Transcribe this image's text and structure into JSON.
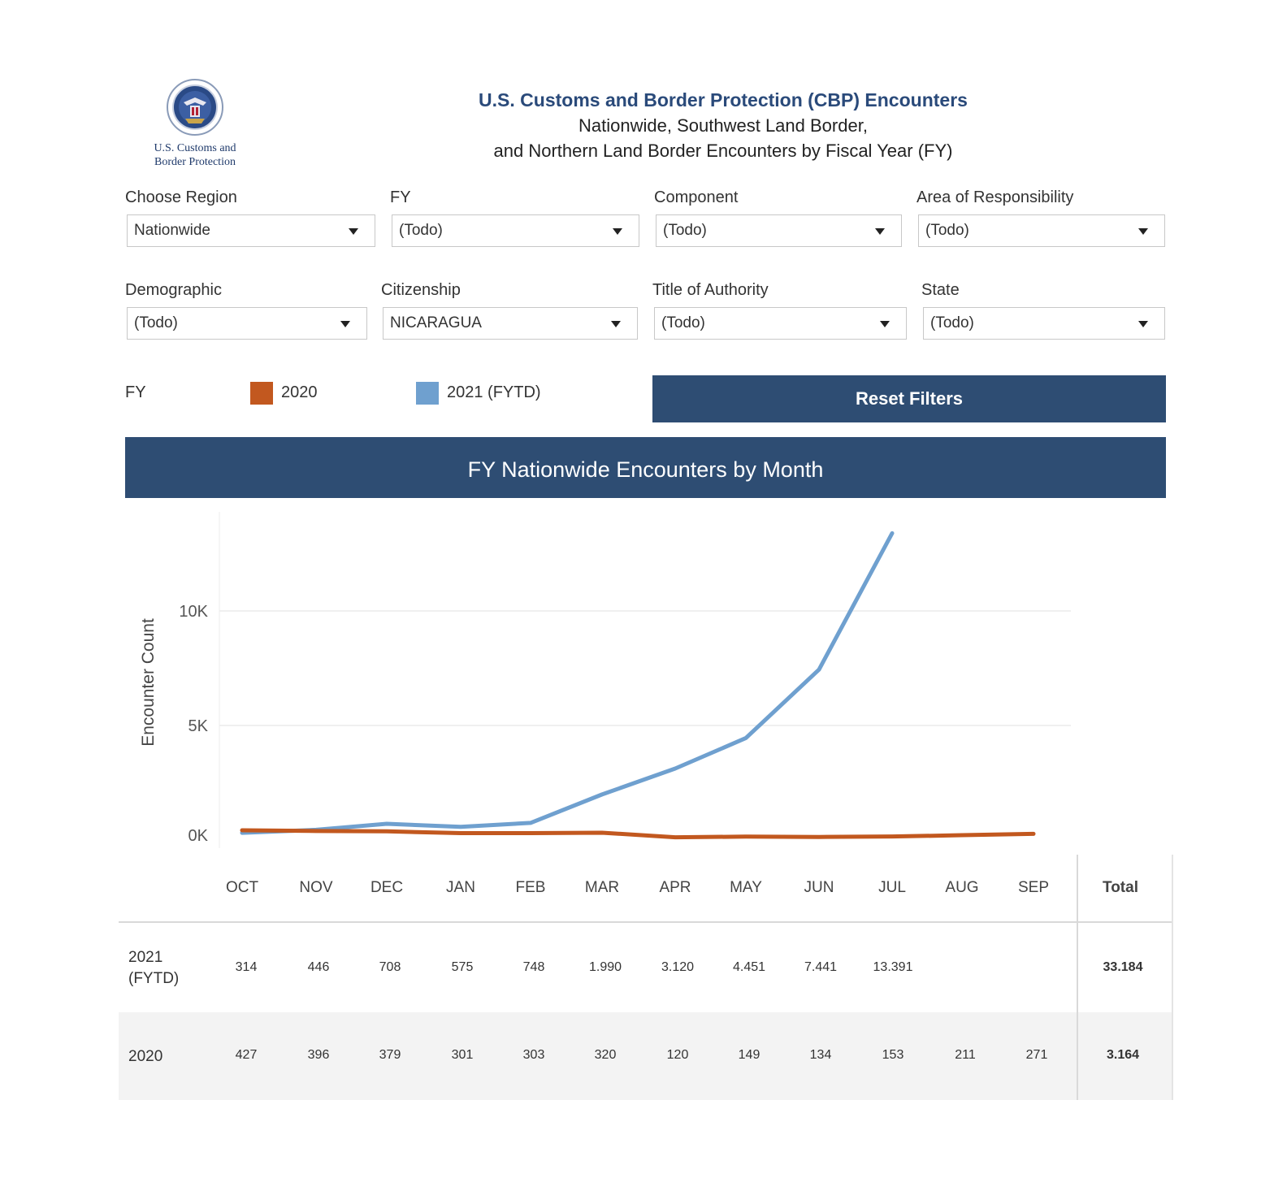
{
  "logo": {
    "line1": "U.S. Customs and",
    "line2": "Border Protection"
  },
  "header": {
    "title": "U.S. Customs and Border Protection (CBP) Encounters",
    "subtitle1": "Nationwide, Southwest Land Border,",
    "subtitle2": "and Northern Land Border Encounters by Fiscal Year (FY)"
  },
  "filters": [
    {
      "label": "Choose Region",
      "value": "Nationwide"
    },
    {
      "label": "FY",
      "value": "(Todo)"
    },
    {
      "label": "Component",
      "value": "(Todo)"
    },
    {
      "label": "Area of Responsibility",
      "value": "(Todo)"
    },
    {
      "label": "Demographic",
      "value": "(Todo)"
    },
    {
      "label": "Citizenship",
      "value": "NICARAGUA"
    },
    {
      "label": "Title of Authority",
      "value": "(Todo)"
    },
    {
      "label": "State",
      "value": "(Todo)"
    }
  ],
  "legend": {
    "title": "FY",
    "items": [
      {
        "label": "2020",
        "color": "#c2581f"
      },
      {
        "label": "2021 (FYTD)",
        "color": "#6fa0cf"
      }
    ]
  },
  "reset_label": "Reset Filters",
  "chart_title": "FY Nationwide Encounters by Month",
  "chart_data": {
    "type": "line",
    "title": "FY Nationwide Encounters by Month",
    "ylabel": "Encounter Count",
    "xlabel": "",
    "categories": [
      "OCT",
      "NOV",
      "DEC",
      "JAN",
      "FEB",
      "MAR",
      "APR",
      "MAY",
      "JUN",
      "JUL",
      "AUG",
      "SEP"
    ],
    "yticks": [
      {
        "value": 0,
        "label": "0K"
      },
      {
        "value": 5000,
        "label": "5K"
      },
      {
        "value": 10000,
        "label": "10K"
      }
    ],
    "ylim": [
      0,
      14000
    ],
    "grid": true,
    "series": [
      {
        "name": "2020",
        "color": "#c2581f",
        "values": [
          427,
          396,
          379,
          301,
          303,
          320,
          120,
          149,
          134,
          153,
          211,
          271
        ]
      },
      {
        "name": "2021 (FYTD)",
        "color": "#6fa0cf",
        "values": [
          314,
          446,
          708,
          575,
          748,
          1990,
          3120,
          4451,
          7441,
          13391,
          null,
          null
        ]
      }
    ]
  },
  "table": {
    "total_header": "Total",
    "rows": [
      {
        "label_line1": "2021",
        "label_line2": "(FYTD)",
        "values": [
          "314",
          "446",
          "708",
          "575",
          "748",
          "1.990",
          "3.120",
          "4.451",
          "7.441",
          "13.391",
          "",
          ""
        ],
        "total": "33.184"
      },
      {
        "label_line1": "2020",
        "label_line2": "",
        "values": [
          "427",
          "396",
          "379",
          "301",
          "303",
          "320",
          "120",
          "149",
          "134",
          "153",
          "211",
          "271"
        ],
        "total": "3.164"
      }
    ]
  }
}
